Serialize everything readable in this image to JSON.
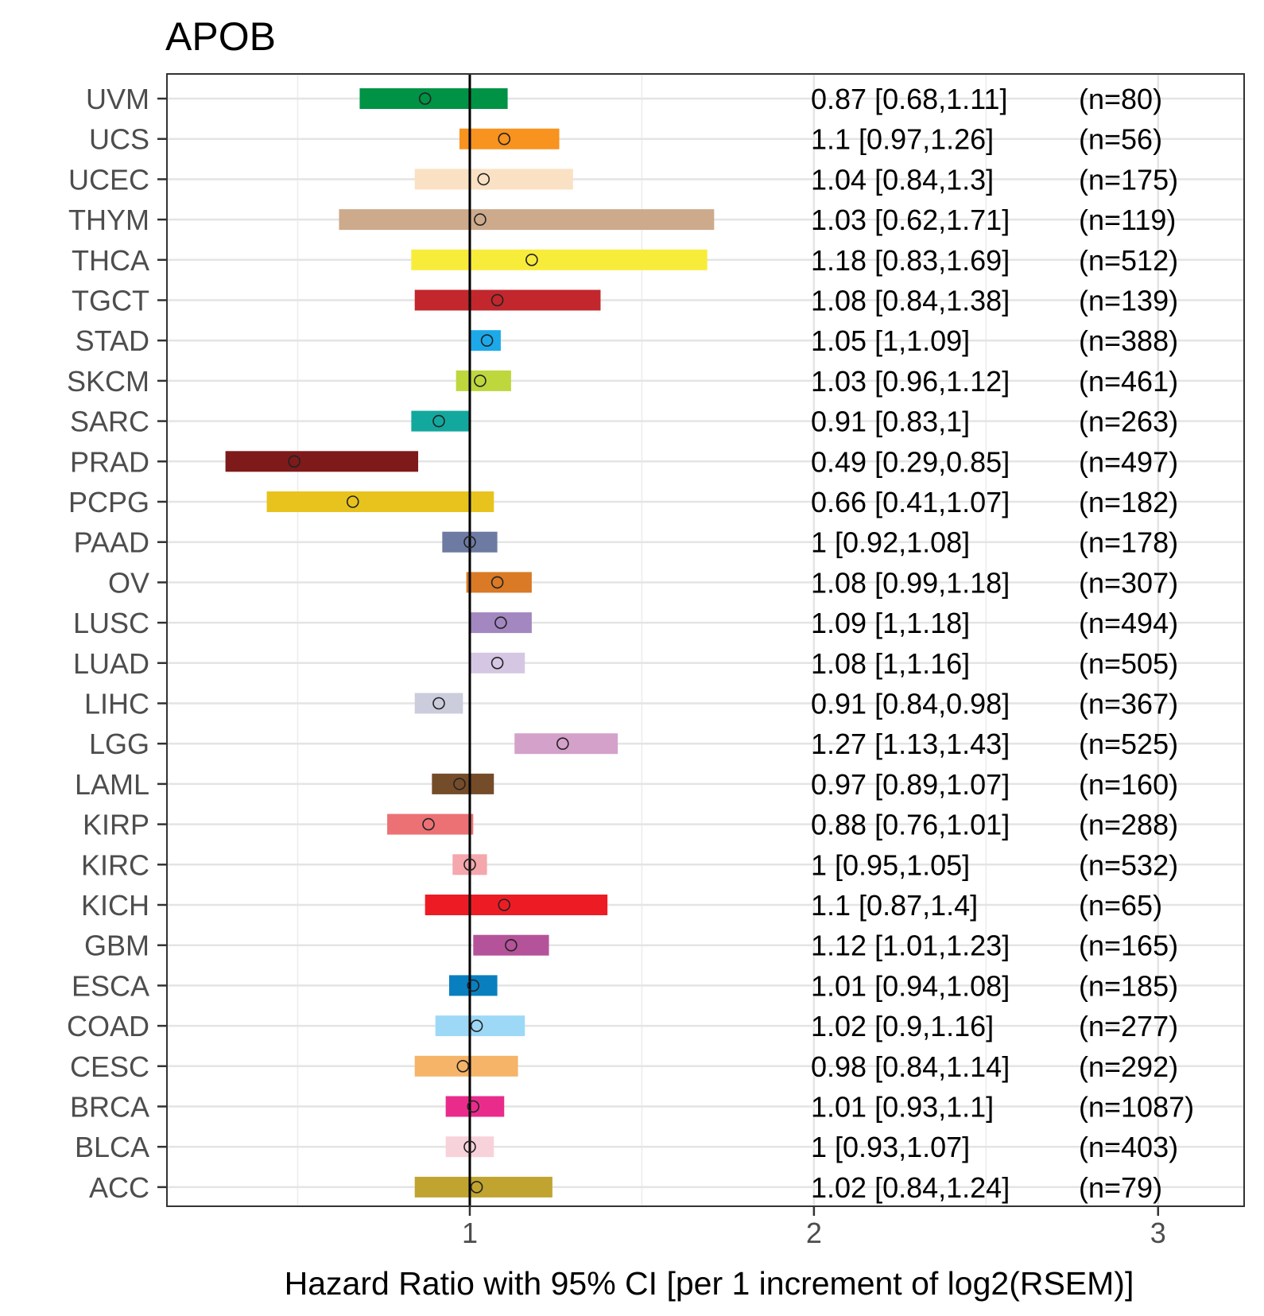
{
  "chart_data": {
    "type": "forest",
    "title": "APOB",
    "xlabel": "Hazard Ratio with 95% CI [per 1 increment of log2(RSEM)]",
    "xlim": [
      0.12,
      3.25
    ],
    "xticks": [
      1,
      2,
      3
    ],
    "xtick_labels": [
      "1",
      "2",
      "3"
    ],
    "minor_grid": [
      0.5,
      1.5,
      2.5
    ],
    "reference_line": 1,
    "grid": true,
    "rows": [
      {
        "label": "UVM",
        "hr": 0.87,
        "lo": 0.68,
        "hi": 1.11,
        "text": "0.87 [0.68,1.11]",
        "n": "(n=80)",
        "color": "#009245"
      },
      {
        "label": "UCS",
        "hr": 1.1,
        "lo": 0.97,
        "hi": 1.26,
        "text": "1.1 [0.97,1.26]",
        "n": "(n=56)",
        "color": "#F7931E"
      },
      {
        "label": "UCEC",
        "hr": 1.04,
        "lo": 0.84,
        "hi": 1.3,
        "text": "1.04 [0.84,1.3]",
        "n": "(n=175)",
        "color": "#FBE1C4"
      },
      {
        "label": "THYM",
        "hr": 1.03,
        "lo": 0.62,
        "hi": 1.71,
        "text": "1.03 [0.62,1.71]",
        "n": "(n=119)",
        "color": "#CDAA8B"
      },
      {
        "label": "THCA",
        "hr": 1.18,
        "lo": 0.83,
        "hi": 1.69,
        "text": "1.18 [0.83,1.69]",
        "n": "(n=512)",
        "color": "#F8EC3A"
      },
      {
        "label": "TGCT",
        "hr": 1.08,
        "lo": 0.84,
        "hi": 1.38,
        "text": "1.08 [0.84,1.38]",
        "n": "(n=139)",
        "color": "#C1272D"
      },
      {
        "label": "STAD",
        "hr": 1.05,
        "lo": 1.0,
        "hi": 1.09,
        "text": "1.05 [1,1.09]",
        "n": "(n=388)",
        "color": "#1CA9E9"
      },
      {
        "label": "SKCM",
        "hr": 1.03,
        "lo": 0.96,
        "hi": 1.12,
        "text": "1.03 [0.96,1.12]",
        "n": "(n=461)",
        "color": "#BDD73D"
      },
      {
        "label": "SARC",
        "hr": 0.91,
        "lo": 0.83,
        "hi": 1.0,
        "text": "0.91 [0.83,1]",
        "n": "(n=263)",
        "color": "#13A89E"
      },
      {
        "label": "PRAD",
        "hr": 0.49,
        "lo": 0.29,
        "hi": 0.85,
        "text": "0.49 [0.29,0.85]",
        "n": "(n=497)",
        "color": "#7E1A1A"
      },
      {
        "label": "PCPG",
        "hr": 0.66,
        "lo": 0.41,
        "hi": 1.07,
        "text": "0.66 [0.41,1.07]",
        "n": "(n=182)",
        "color": "#E8C31E"
      },
      {
        "label": "PAAD",
        "hr": 1.0,
        "lo": 0.92,
        "hi": 1.08,
        "text": "1 [0.92,1.08]",
        "n": "(n=178)",
        "color": "#6D7BA3"
      },
      {
        "label": "OV",
        "hr": 1.08,
        "lo": 0.99,
        "hi": 1.18,
        "text": "1.08 [0.99,1.18]",
        "n": "(n=307)",
        "color": "#DA7A26"
      },
      {
        "label": "LUSC",
        "hr": 1.09,
        "lo": 1.0,
        "hi": 1.18,
        "text": "1.09 [1,1.18]",
        "n": "(n=494)",
        "color": "#A287C0"
      },
      {
        "label": "LUAD",
        "hr": 1.08,
        "lo": 1.0,
        "hi": 1.16,
        "text": "1.08 [1,1.16]",
        "n": "(n=505)",
        "color": "#D5C7E3"
      },
      {
        "label": "LIHC",
        "hr": 0.91,
        "lo": 0.84,
        "hi": 0.98,
        "text": "0.91 [0.84,0.98]",
        "n": "(n=367)",
        "color": "#CBCCDC"
      },
      {
        "label": "LGG",
        "hr": 1.27,
        "lo": 1.13,
        "hi": 1.43,
        "text": "1.27 [1.13,1.43]",
        "n": "(n=525)",
        "color": "#D4A1CB"
      },
      {
        "label": "LAML",
        "hr": 0.97,
        "lo": 0.89,
        "hi": 1.07,
        "text": "0.97 [0.89,1.07]",
        "n": "(n=160)",
        "color": "#754C29"
      },
      {
        "label": "KIRP",
        "hr": 0.88,
        "lo": 0.76,
        "hi": 1.01,
        "text": "0.88 [0.76,1.01]",
        "n": "(n=288)",
        "color": "#EC7175"
      },
      {
        "label": "KIRC",
        "hr": 1.0,
        "lo": 0.95,
        "hi": 1.05,
        "text": "1 [0.95,1.05]",
        "n": "(n=532)",
        "color": "#F4A7AC"
      },
      {
        "label": "KICH",
        "hr": 1.1,
        "lo": 0.87,
        "hi": 1.4,
        "text": "1.1 [0.87,1.4]",
        "n": "(n=65)",
        "color": "#ED1C24"
      },
      {
        "label": "GBM",
        "hr": 1.12,
        "lo": 1.01,
        "hi": 1.23,
        "text": "1.12 [1.01,1.23]",
        "n": "(n=165)",
        "color": "#B5539A"
      },
      {
        "label": "ESCA",
        "hr": 1.01,
        "lo": 0.94,
        "hi": 1.08,
        "text": "1.01 [0.94,1.08]",
        "n": "(n=185)",
        "color": "#0A7FBF"
      },
      {
        "label": "COAD",
        "hr": 1.02,
        "lo": 0.9,
        "hi": 1.16,
        "text": "1.02 [0.9,1.16]",
        "n": "(n=277)",
        "color": "#9DD9F7"
      },
      {
        "label": "CESC",
        "hr": 0.98,
        "lo": 0.84,
        "hi": 1.14,
        "text": "0.98 [0.84,1.14]",
        "n": "(n=292)",
        "color": "#F5B468"
      },
      {
        "label": "BRCA",
        "hr": 1.01,
        "lo": 0.93,
        "hi": 1.1,
        "text": "1.01 [0.93,1.1]",
        "n": "(n=1087)",
        "color": "#E92C8C"
      },
      {
        "label": "BLCA",
        "hr": 1.0,
        "lo": 0.93,
        "hi": 1.07,
        "text": "1 [0.93,1.07]",
        "n": "(n=403)",
        "color": "#F8D2DA"
      },
      {
        "label": "ACC",
        "hr": 1.02,
        "lo": 0.84,
        "hi": 1.24,
        "text": "1.02 [0.84,1.24]",
        "n": "(n=79)",
        "color": "#C0A42F"
      }
    ]
  }
}
